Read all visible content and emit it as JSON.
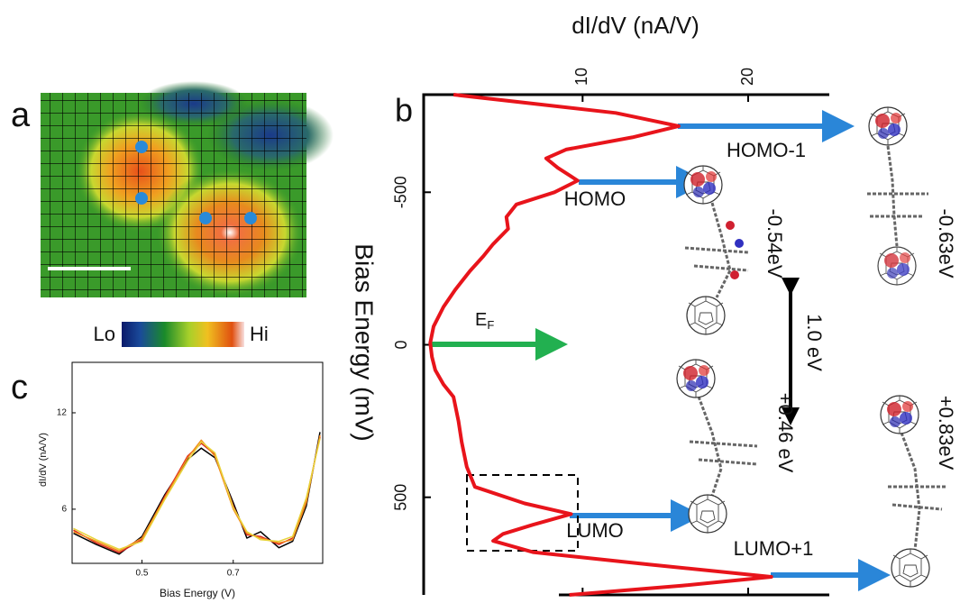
{
  "panel_a": {
    "label": "a",
    "colorbar_low": "Lo",
    "colorbar_high": "Hi"
  },
  "chart_data": [
    {
      "type": "line",
      "panel": "b",
      "orientation": "rotated",
      "xlabel": "Bias Energy (mV)",
      "ylabel": "dI/dV (nA/V)",
      "x": [
        -820,
        -760,
        -717,
        -680,
        -640,
        -611,
        -580,
        -538,
        -500,
        -460,
        -419,
        -380,
        -330,
        -290,
        -242,
        -180,
        -124,
        -60,
        -6,
        40,
        83,
        130,
        171,
        250,
        319,
        400,
        466,
        520,
        555,
        590,
        620,
        643,
        680,
        720,
        761,
        790,
        820
      ],
      "xlim": [
        -820,
        820
      ],
      "xticks": [
        -500,
        0,
        500
      ],
      "ylim": [
        0.4,
        24.9
      ],
      "yticks": [
        10,
        20
      ],
      "series": [
        {
          "color": "#e8141b",
          "values": [
            2.2,
            12.0,
            15.8,
            13.0,
            9.0,
            7.8,
            8.5,
            9.7,
            8.3,
            6.0,
            5.4,
            5.5,
            4.6,
            4.0,
            3.2,
            2.3,
            1.6,
            1.0,
            0.8,
            0.9,
            1.1,
            1.6,
            2.2,
            2.5,
            2.7,
            3.0,
            3.5,
            6.5,
            9.3,
            7.0,
            5.2,
            4.6,
            7.0,
            14.0,
            21.4,
            16.0,
            9.2
          ]
        }
      ],
      "fermi_label": "E",
      "fermi_subscript": "F",
      "annotations": [
        "HOMO-1",
        "HOMO",
        "LUMO",
        "LUMO+1",
        "-0.54eV",
        "-0.63eV",
        "1.0 eV",
        "+0.46 eV",
        "+0.83eV"
      ]
    },
    {
      "type": "line",
      "panel": "c",
      "orientation": "normal",
      "xlabel": "Bias Energy (V)",
      "ylabel": "dI/dV (nA/V)",
      "x": [
        0.35,
        0.4,
        0.45,
        0.5,
        0.55,
        0.6,
        0.63,
        0.66,
        0.7,
        0.73,
        0.76,
        0.8,
        0.83,
        0.86,
        0.89
      ],
      "xlim": [
        0.347,
        0.896
      ],
      "xticks": [
        0.5,
        0.7
      ],
      "ylim": [
        2.63,
        15.14
      ],
      "yticks": [
        6,
        12
      ],
      "series": [
        {
          "color": "#000000",
          "values": [
            4.5,
            3.8,
            3.2,
            4.3,
            6.9,
            9.1,
            9.8,
            9.2,
            6.4,
            4.2,
            4.6,
            3.6,
            4.0,
            6.2,
            10.8
          ]
        },
        {
          "color": "#d9261c",
          "values": [
            4.7,
            3.9,
            3.3,
            4.1,
            6.8,
            9.3,
            10.1,
            9.4,
            6.2,
            4.4,
            4.3,
            3.8,
            4.2,
            6.6,
            10.5
          ]
        },
        {
          "color": "#f28a1c",
          "values": [
            4.6,
            4.0,
            3.4,
            4.2,
            6.7,
            9.2,
            10.3,
            9.3,
            6.0,
            4.5,
            4.2,
            3.9,
            4.1,
            6.4,
            10.6
          ]
        },
        {
          "color": "#e8d43a",
          "values": [
            4.8,
            4.1,
            3.5,
            4.0,
            6.6,
            9.0,
            10.2,
            9.5,
            6.1,
            4.6,
            4.1,
            4.0,
            4.3,
            6.7,
            10.4
          ]
        }
      ]
    }
  ]
}
